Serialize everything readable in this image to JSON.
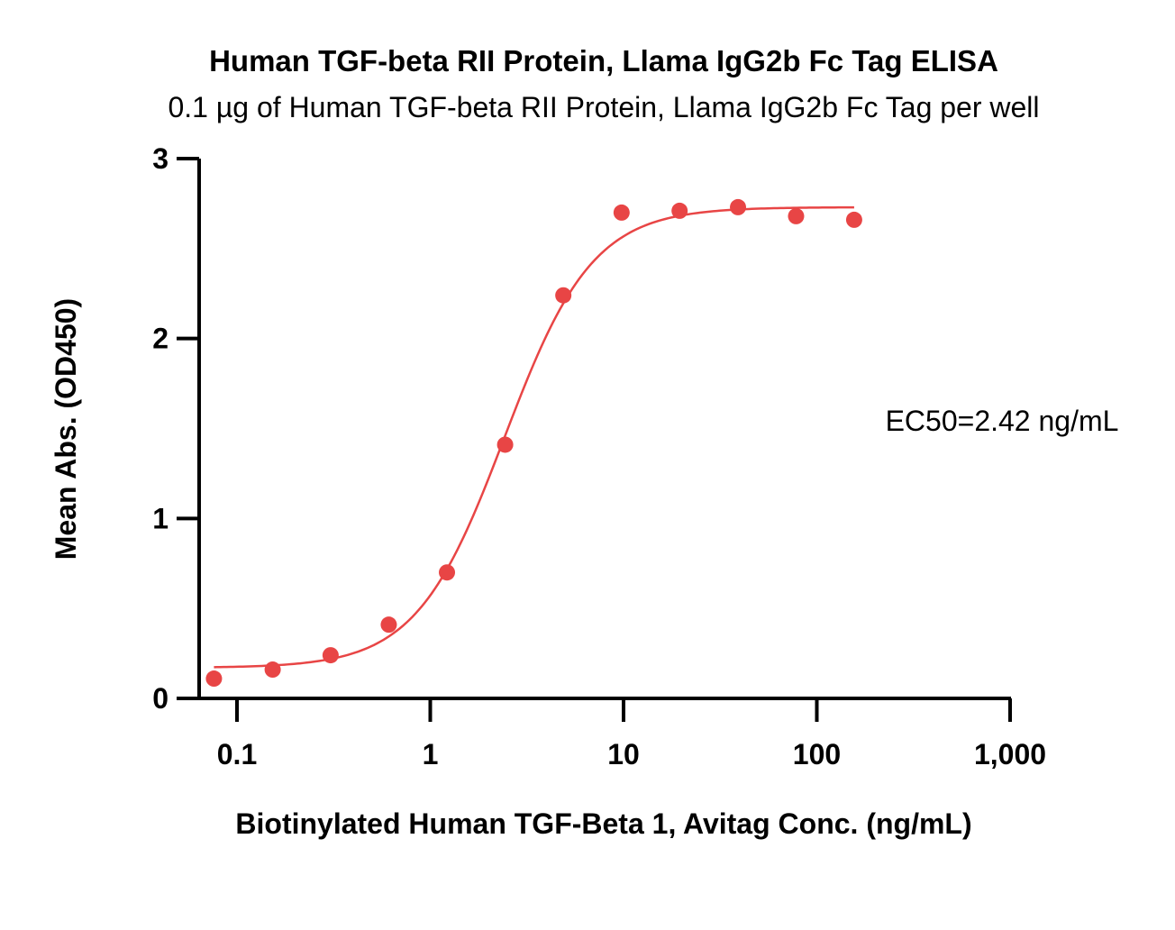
{
  "chart_data": {
    "type": "scatter",
    "title": "Human TGF-beta RII Protein, Llama IgG2b Fc Tag ELISA",
    "subtitle": "0.1 µg of Human TGF-beta RII Protein, Llama IgG2b Fc Tag per well",
    "xlabel": "Biotinylated Human TGF-Beta 1, Avitag Conc. (ng/mL)",
    "ylabel": "Mean Abs. (OD450)",
    "x_scale": "log",
    "xlim": [
      0.05,
      1000
    ],
    "ylim": [
      0,
      3
    ],
    "x_ticks": [
      0.1,
      1,
      10,
      100,
      1000
    ],
    "x_tick_labels": [
      "0.1",
      "1",
      "10",
      "100",
      "1,000"
    ],
    "y_ticks": [
      0,
      1,
      2,
      3
    ],
    "y_tick_labels": [
      "0",
      "1",
      "2",
      "3"
    ],
    "grid": false,
    "annotation": "EC50=2.42 ng/mL",
    "color": "#e84545",
    "series": [
      {
        "x": [
          0.076,
          0.153,
          0.305,
          0.61,
          1.22,
          2.44,
          4.88,
          9.77,
          19.5,
          39.1,
          78.1,
          156
        ],
        "y": [
          0.11,
          0.16,
          0.24,
          0.41,
          0.7,
          1.41,
          2.24,
          2.7,
          2.71,
          2.73,
          2.68,
          2.66
        ]
      }
    ],
    "fit": {
      "model": "4PL",
      "bottom": 0.17,
      "top": 2.73,
      "ec50": 2.42,
      "hill": 1.9,
      "x_range": [
        0.076,
        156
      ]
    }
  }
}
